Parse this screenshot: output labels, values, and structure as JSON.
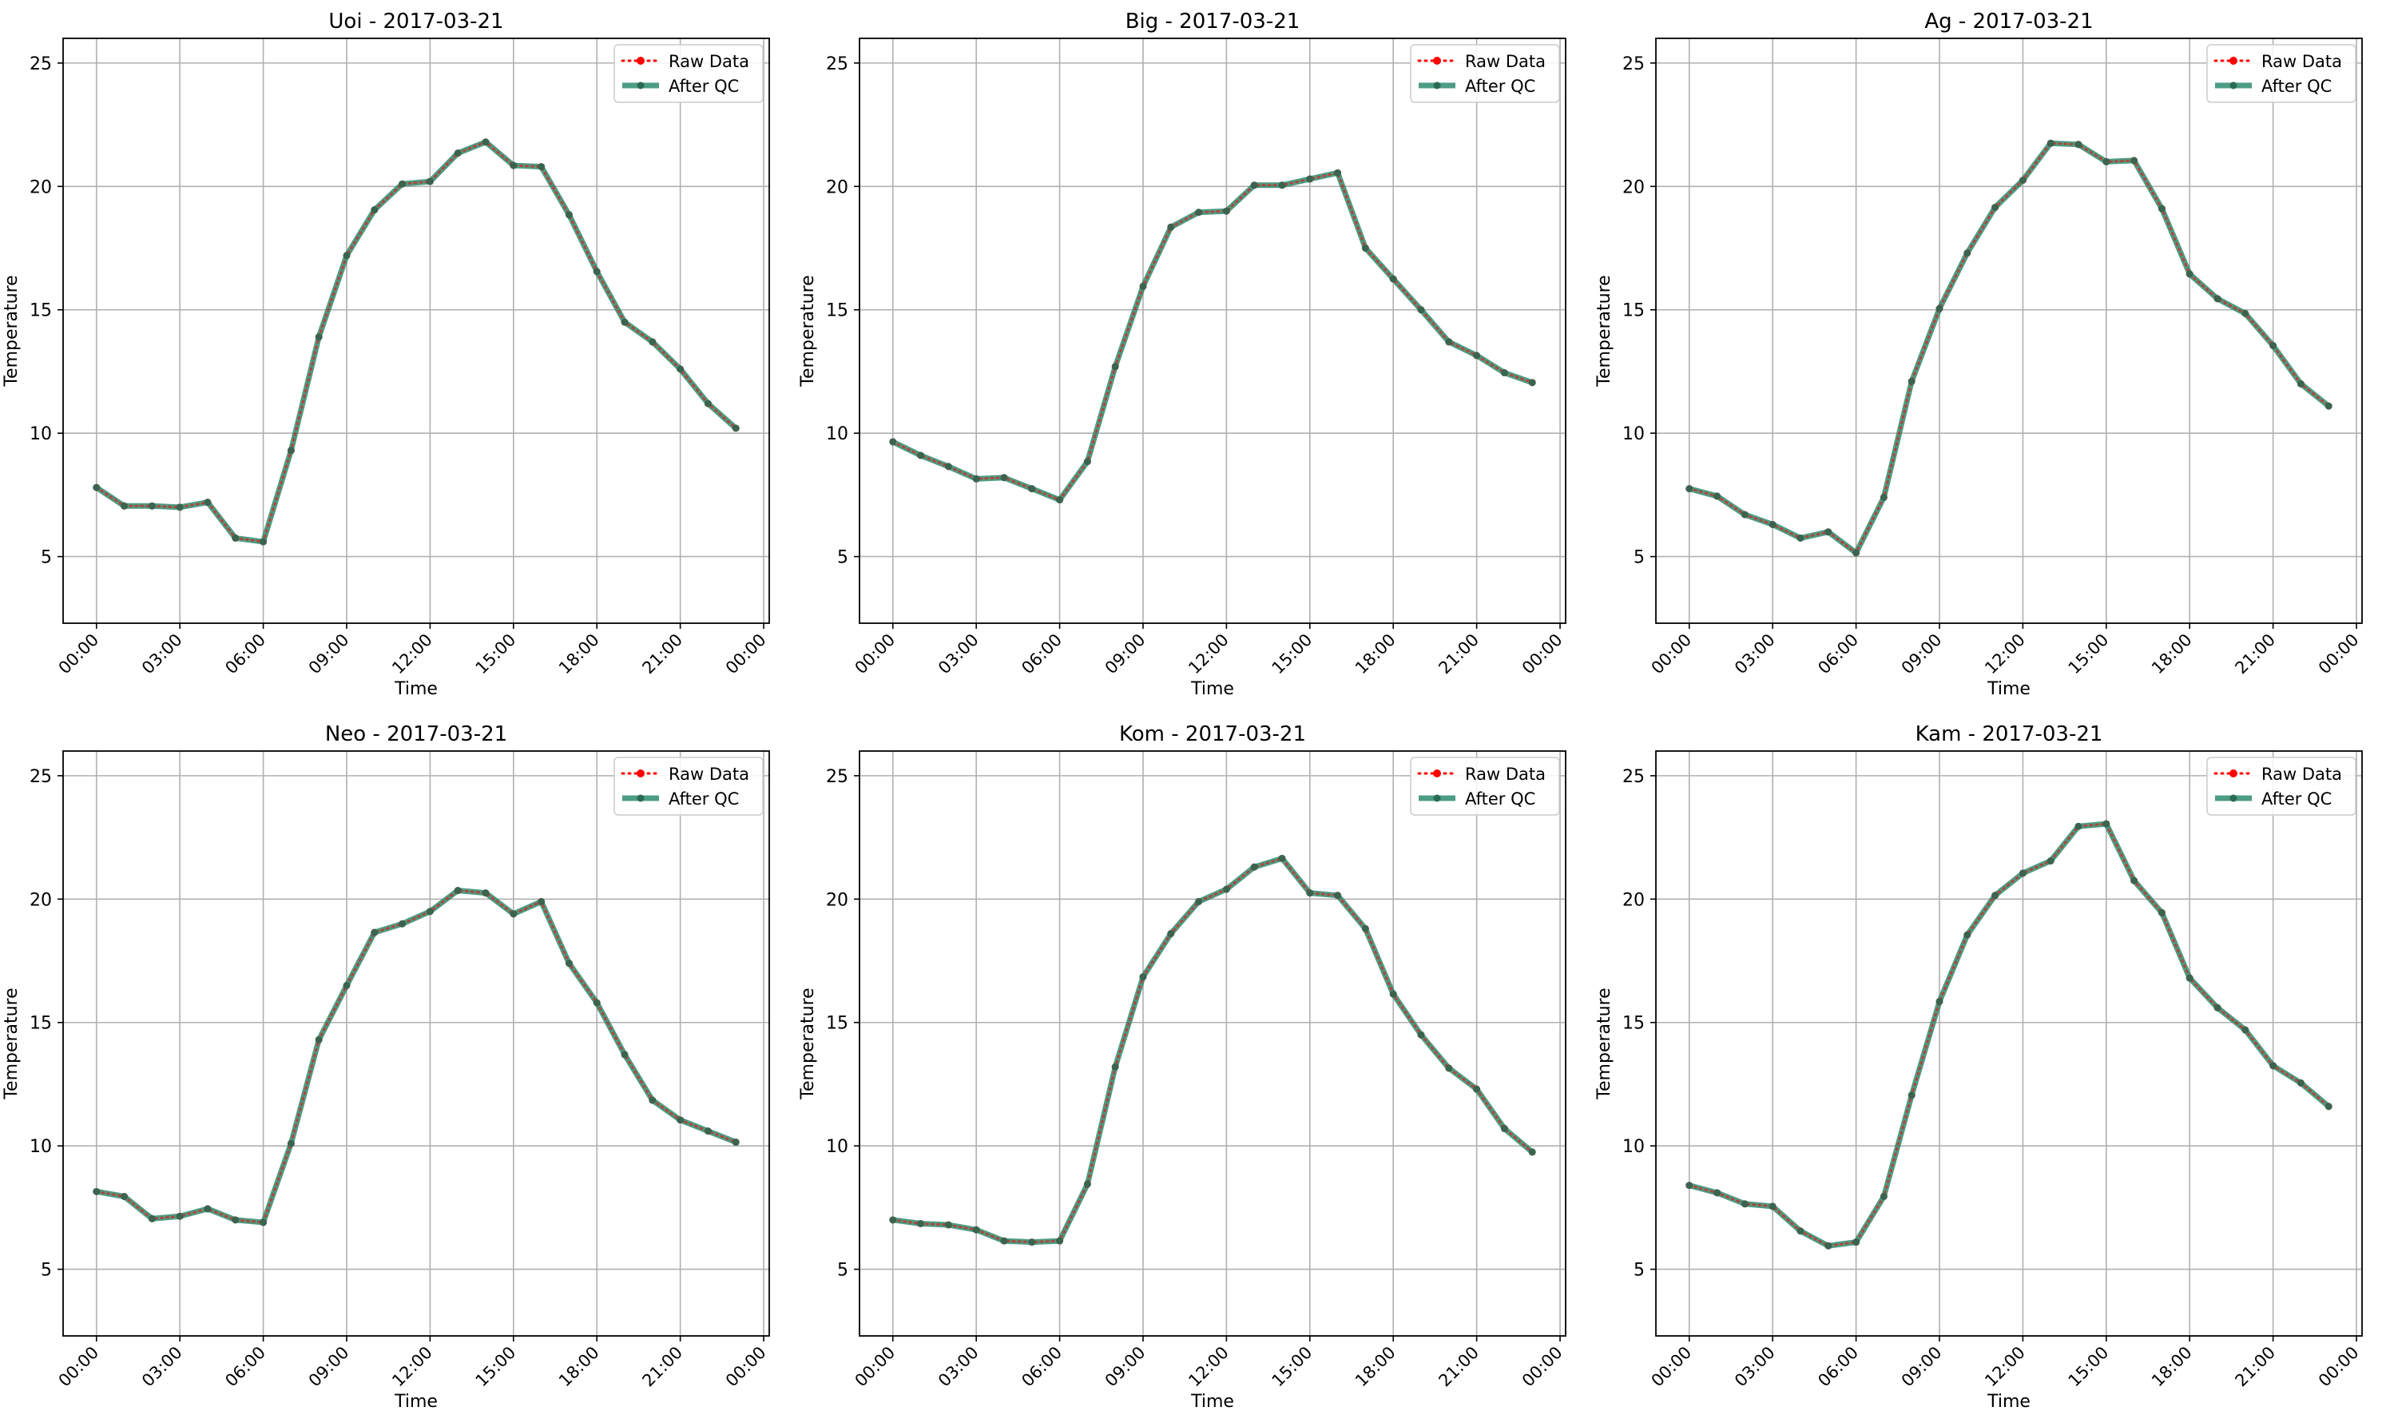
{
  "colors": {
    "raw": "#ff0000",
    "qc": "#2e8b6e",
    "grid": "#b0b0b0",
    "axes": "#000000"
  },
  "legend": {
    "raw_label": "Raw Data",
    "qc_label": "After QC"
  },
  "chart_data": [
    {
      "type": "line",
      "title": "Uoi - 2017-03-21",
      "xlabel": "Time",
      "ylabel": "Temperature",
      "ylim": [
        2.3,
        26
      ],
      "yticks": [
        5,
        10,
        15,
        20,
        25
      ],
      "xticks": [
        "00:00",
        "03:00",
        "06:00",
        "09:00",
        "12:00",
        "15:00",
        "18:00",
        "21:00",
        "00:00"
      ],
      "xlim_hours": [
        -1.2,
        24.2
      ],
      "grid": true,
      "legend_position": "top-right",
      "x_hours": [
        0,
        1,
        2,
        3,
        4,
        5,
        6,
        7,
        8,
        9,
        10,
        11,
        12,
        13,
        14,
        15,
        16,
        17,
        18,
        19,
        20,
        21,
        22,
        23
      ],
      "series": [
        {
          "name": "Raw Data",
          "values": [
            7.8,
            7.05,
            7.05,
            7.0,
            7.2,
            5.75,
            5.6,
            9.3,
            13.9,
            17.2,
            19.05,
            20.1,
            20.2,
            21.35,
            21.8,
            20.85,
            20.8,
            18.85,
            16.55,
            14.5,
            13.7,
            12.6,
            11.2,
            10.2
          ]
        },
        {
          "name": "After QC",
          "values": [
            7.8,
            7.05,
            7.05,
            7.0,
            7.2,
            5.75,
            5.6,
            9.3,
            13.9,
            17.2,
            19.05,
            20.1,
            20.2,
            21.35,
            21.8,
            20.85,
            20.8,
            18.85,
            16.55,
            14.5,
            13.7,
            12.6,
            11.2,
            10.2
          ]
        }
      ]
    },
    {
      "type": "line",
      "title": "Big - 2017-03-21",
      "xlabel": "Time",
      "ylabel": "Temperature",
      "ylim": [
        2.3,
        26
      ],
      "yticks": [
        5,
        10,
        15,
        20,
        25
      ],
      "xticks": [
        "00:00",
        "03:00",
        "06:00",
        "09:00",
        "12:00",
        "15:00",
        "18:00",
        "21:00",
        "00:00"
      ],
      "xlim_hours": [
        -1.2,
        24.2
      ],
      "grid": true,
      "legend_position": "top-right",
      "x_hours": [
        0,
        1,
        2,
        3,
        4,
        5,
        6,
        7,
        8,
        9,
        10,
        11,
        12,
        13,
        14,
        15,
        16,
        17,
        18,
        19,
        20,
        21,
        22,
        23
      ],
      "series": [
        {
          "name": "Raw Data",
          "values": [
            9.65,
            9.1,
            8.65,
            8.15,
            8.2,
            7.75,
            7.3,
            8.85,
            12.7,
            15.95,
            18.35,
            18.95,
            19.0,
            20.05,
            20.05,
            20.3,
            20.55,
            17.5,
            16.25,
            15.0,
            13.7,
            13.15,
            12.45,
            12.05
          ]
        },
        {
          "name": "After QC",
          "values": [
            9.65,
            9.1,
            8.65,
            8.15,
            8.2,
            7.75,
            7.3,
            8.85,
            12.7,
            15.95,
            18.35,
            18.95,
            19.0,
            20.05,
            20.05,
            20.3,
            20.55,
            17.5,
            16.25,
            15.0,
            13.7,
            13.15,
            12.45,
            12.05
          ]
        }
      ]
    },
    {
      "type": "line",
      "title": "Ag - 2017-03-21",
      "xlabel": "Time",
      "ylabel": "Temperature",
      "ylim": [
        2.3,
        26
      ],
      "yticks": [
        5,
        10,
        15,
        20,
        25
      ],
      "xticks": [
        "00:00",
        "03:00",
        "06:00",
        "09:00",
        "12:00",
        "15:00",
        "18:00",
        "21:00",
        "00:00"
      ],
      "xlim_hours": [
        -1.2,
        24.2
      ],
      "grid": true,
      "legend_position": "top-right",
      "x_hours": [
        0,
        1,
        2,
        3,
        4,
        5,
        6,
        7,
        8,
        9,
        10,
        11,
        12,
        13,
        14,
        15,
        16,
        17,
        18,
        19,
        20,
        21,
        22,
        23
      ],
      "series": [
        {
          "name": "Raw Data",
          "values": [
            7.75,
            7.45,
            6.7,
            6.3,
            5.75,
            6.0,
            5.15,
            7.4,
            12.1,
            15.05,
            17.3,
            19.15,
            20.25,
            21.75,
            21.7,
            21.0,
            21.05,
            19.1,
            16.45,
            15.45,
            14.85,
            13.55,
            12.0,
            11.1
          ]
        },
        {
          "name": "After QC",
          "values": [
            7.75,
            7.45,
            6.7,
            6.3,
            5.75,
            6.0,
            5.15,
            7.4,
            12.1,
            15.05,
            17.3,
            19.15,
            20.25,
            21.75,
            21.7,
            21.0,
            21.05,
            19.1,
            16.45,
            15.45,
            14.85,
            13.55,
            12.0,
            11.1
          ]
        }
      ]
    },
    {
      "type": "line",
      "title": "Neo - 2017-03-21",
      "xlabel": "Time",
      "ylabel": "Temperature",
      "ylim": [
        2.3,
        26
      ],
      "yticks": [
        5,
        10,
        15,
        20,
        25
      ],
      "xticks": [
        "00:00",
        "03:00",
        "06:00",
        "09:00",
        "12:00",
        "15:00",
        "18:00",
        "21:00",
        "00:00"
      ],
      "xlim_hours": [
        -1.2,
        24.2
      ],
      "grid": true,
      "legend_position": "top-right",
      "x_hours": [
        0,
        1,
        2,
        3,
        4,
        5,
        6,
        7,
        8,
        9,
        10,
        11,
        12,
        13,
        14,
        15,
        16,
        17,
        18,
        19,
        20,
        21,
        22,
        23
      ],
      "series": [
        {
          "name": "Raw Data",
          "values": [
            8.15,
            7.95,
            7.05,
            7.15,
            7.45,
            7.0,
            6.9,
            10.1,
            14.3,
            16.5,
            18.65,
            19.0,
            19.5,
            20.35,
            20.25,
            19.4,
            19.9,
            17.4,
            15.8,
            13.7,
            11.85,
            11.05,
            10.6,
            10.15
          ]
        },
        {
          "name": "After QC",
          "values": [
            8.15,
            7.95,
            7.05,
            7.15,
            7.45,
            7.0,
            6.9,
            10.1,
            14.3,
            16.5,
            18.65,
            19.0,
            19.5,
            20.35,
            20.25,
            19.4,
            19.9,
            17.4,
            15.8,
            13.7,
            11.85,
            11.05,
            10.6,
            10.15
          ]
        }
      ]
    },
    {
      "type": "line",
      "title": "Kom - 2017-03-21",
      "xlabel": "Time",
      "ylabel": "Temperature",
      "ylim": [
        2.3,
        26
      ],
      "yticks": [
        5,
        10,
        15,
        20,
        25
      ],
      "xticks": [
        "00:00",
        "03:00",
        "06:00",
        "09:00",
        "12:00",
        "15:00",
        "18:00",
        "21:00",
        "00:00"
      ],
      "xlim_hours": [
        -1.2,
        24.2
      ],
      "grid": true,
      "legend_position": "top-right",
      "x_hours": [
        0,
        1,
        2,
        3,
        4,
        5,
        6,
        7,
        8,
        9,
        10,
        11,
        12,
        13,
        14,
        15,
        16,
        17,
        18,
        19,
        20,
        21,
        22,
        23
      ],
      "series": [
        {
          "name": "Raw Data",
          "values": [
            7.0,
            6.85,
            6.8,
            6.6,
            6.15,
            6.1,
            6.15,
            8.45,
            13.2,
            16.85,
            18.6,
            19.9,
            20.4,
            21.3,
            21.65,
            20.25,
            20.15,
            18.8,
            16.15,
            14.5,
            13.15,
            12.3,
            10.7,
            9.75
          ]
        },
        {
          "name": "After QC",
          "values": [
            7.0,
            6.85,
            6.8,
            6.6,
            6.15,
            6.1,
            6.15,
            8.45,
            13.2,
            16.85,
            18.6,
            19.9,
            20.4,
            21.3,
            21.65,
            20.25,
            20.15,
            18.8,
            16.15,
            14.5,
            13.15,
            12.3,
            10.7,
            9.75
          ]
        }
      ]
    },
    {
      "type": "line",
      "title": "Kam - 2017-03-21",
      "xlabel": "Time",
      "ylabel": "Temperature",
      "ylim": [
        2.3,
        26
      ],
      "yticks": [
        5,
        10,
        15,
        20,
        25
      ],
      "xticks": [
        "00:00",
        "03:00",
        "06:00",
        "09:00",
        "12:00",
        "15:00",
        "18:00",
        "21:00",
        "00:00"
      ],
      "xlim_hours": [
        -1.2,
        24.2
      ],
      "grid": true,
      "legend_position": "top-right",
      "x_hours": [
        0,
        1,
        2,
        3,
        4,
        5,
        6,
        7,
        8,
        9,
        10,
        11,
        12,
        13,
        14,
        15,
        16,
        17,
        18,
        19,
        20,
        21,
        22,
        23
      ],
      "series": [
        {
          "name": "Raw Data",
          "values": [
            8.4,
            8.1,
            7.65,
            7.55,
            6.55,
            5.95,
            6.1,
            7.95,
            12.05,
            15.85,
            18.55,
            20.15,
            21.05,
            21.55,
            22.95,
            23.05,
            20.75,
            19.45,
            16.8,
            15.6,
            14.7,
            13.25,
            12.55,
            11.6
          ]
        },
        {
          "name": "After QC",
          "values": [
            8.4,
            8.1,
            7.65,
            7.55,
            6.55,
            5.95,
            6.1,
            7.95,
            12.05,
            15.85,
            18.55,
            20.15,
            21.05,
            21.55,
            22.95,
            23.05,
            20.75,
            19.45,
            16.8,
            15.6,
            14.7,
            13.25,
            12.55,
            11.6
          ]
        }
      ]
    }
  ]
}
